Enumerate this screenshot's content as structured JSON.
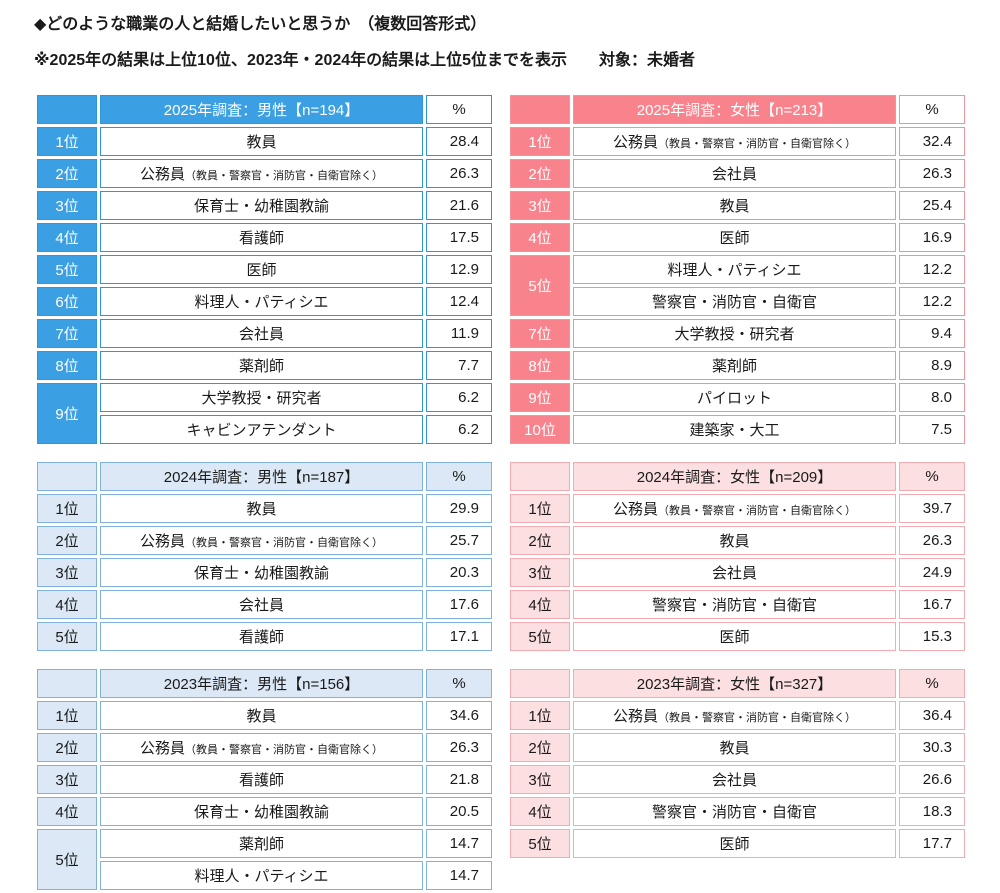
{
  "chart_data": {
    "type": "table",
    "title": "◆どのような職業の人と結婚したいと思うか　（複数回答形式）",
    "note": "※2025年の結果は上位10位、2023年・2024年の結果は上位5位までを表示　　対象：未婚者",
    "colors": {
      "male_strong": "#3B9FE3",
      "male_light": "#DCE8F5",
      "female_strong": "#F8838C",
      "female_light": "#FBDFE1"
    },
    "tables": [
      {
        "id": "2025-male",
        "theme": "male-strong",
        "title": "2025年調査：男性【n=194】",
        "percent_header": "%",
        "rows": [
          {
            "rank": "1位",
            "occupation": "教員",
            "percent": "28.4"
          },
          {
            "rank": "2位",
            "occupation": "公務員",
            "note": "（教員・警察官・消防官・自衛官除く）",
            "percent": "26.3"
          },
          {
            "rank": "3位",
            "occupation": "保育士・幼稚園教諭",
            "percent": "21.6"
          },
          {
            "rank": "4位",
            "occupation": "看護師",
            "percent": "17.5"
          },
          {
            "rank": "5位",
            "occupation": "医師",
            "percent": "12.9"
          },
          {
            "rank": "6位",
            "occupation": "料理人・パティシエ",
            "percent": "12.4"
          },
          {
            "rank": "7位",
            "occupation": "会社員",
            "percent": "11.9"
          },
          {
            "rank": "8位",
            "occupation": "薬剤師",
            "percent": "7.7"
          },
          {
            "rank": "9位",
            "rank_span": 2,
            "occupation": "大学教授・研究者",
            "percent": "6.2"
          },
          {
            "occupation": "キャビンアテンダント",
            "percent": "6.2"
          }
        ]
      },
      {
        "id": "2025-female",
        "theme": "female-strong",
        "title": "2025年調査：女性【n=213】",
        "percent_header": "%",
        "rows": [
          {
            "rank": "1位",
            "occupation": "公務員",
            "note": "（教員・警察官・消防官・自衛官除く）",
            "percent": "32.4"
          },
          {
            "rank": "2位",
            "occupation": "会社員",
            "percent": "26.3"
          },
          {
            "rank": "3位",
            "occupation": "教員",
            "percent": "25.4"
          },
          {
            "rank": "4位",
            "occupation": "医師",
            "percent": "16.9"
          },
          {
            "rank": "5位",
            "rank_span": 2,
            "occupation": "料理人・パティシエ",
            "percent": "12.2"
          },
          {
            "occupation": "警察官・消防官・自衛官",
            "percent": "12.2"
          },
          {
            "rank": "7位",
            "occupation": "大学教授・研究者",
            "percent": "9.4"
          },
          {
            "rank": "8位",
            "occupation": "薬剤師",
            "percent": "8.9"
          },
          {
            "rank": "9位",
            "occupation": "パイロット",
            "percent": "8.0"
          },
          {
            "rank": "10位",
            "occupation": "建築家・大工",
            "percent": "7.5"
          }
        ]
      },
      {
        "id": "2024-male",
        "theme": "male-light",
        "title": "2024年調査：男性【n=187】",
        "percent_header": "%",
        "rows": [
          {
            "rank": "1位",
            "occupation": "教員",
            "percent": "29.9"
          },
          {
            "rank": "2位",
            "occupation": "公務員",
            "note": "（教員・警察官・消防官・自衛官除く）",
            "percent": "25.7"
          },
          {
            "rank": "3位",
            "occupation": "保育士・幼稚園教諭",
            "percent": "20.3"
          },
          {
            "rank": "4位",
            "occupation": "会社員",
            "percent": "17.6"
          },
          {
            "rank": "5位",
            "occupation": "看護師",
            "percent": "17.1"
          }
        ]
      },
      {
        "id": "2024-female",
        "theme": "female-light",
        "title": "2024年調査：女性【n=209】",
        "percent_header": "%",
        "rows": [
          {
            "rank": "1位",
            "occupation": "公務員",
            "note": "（教員・警察官・消防官・自衛官除く）",
            "percent": "39.7"
          },
          {
            "rank": "2位",
            "occupation": "教員",
            "percent": "26.3"
          },
          {
            "rank": "3位",
            "occupation": "会社員",
            "percent": "24.9"
          },
          {
            "rank": "4位",
            "occupation": "警察官・消防官・自衛官",
            "percent": "16.7"
          },
          {
            "rank": "5位",
            "occupation": "医師",
            "percent": "15.3"
          }
        ]
      },
      {
        "id": "2023-male",
        "theme": "male-light",
        "title": "2023年調査：男性【n=156】",
        "percent_header": "%",
        "rows": [
          {
            "rank": "1位",
            "occupation": "教員",
            "percent": "34.6"
          },
          {
            "rank": "2位",
            "occupation": "公務員",
            "note": "（教員・警察官・消防官・自衛官除く）",
            "percent": "26.3"
          },
          {
            "rank": "3位",
            "occupation": "看護師",
            "percent": "21.8"
          },
          {
            "rank": "4位",
            "occupation": "保育士・幼稚園教諭",
            "percent": "20.5"
          },
          {
            "rank": "5位",
            "rank_span": 2,
            "occupation": "薬剤師",
            "percent": "14.7"
          },
          {
            "occupation": "料理人・パティシエ",
            "percent": "14.7"
          }
        ]
      },
      {
        "id": "2023-female",
        "theme": "female-light",
        "title": "2023年調査：女性【n=327】",
        "percent_header": "%",
        "rows": [
          {
            "rank": "1位",
            "occupation": "公務員",
            "note": "（教員・警察官・消防官・自衛官除く）",
            "percent": "36.4"
          },
          {
            "rank": "2位",
            "occupation": "教員",
            "percent": "30.3"
          },
          {
            "rank": "3位",
            "occupation": "会社員",
            "percent": "26.6"
          },
          {
            "rank": "4位",
            "occupation": "警察官・消防官・自衛官",
            "percent": "18.3"
          },
          {
            "rank": "5位",
            "occupation": "医師",
            "percent": "17.7"
          }
        ]
      }
    ]
  }
}
